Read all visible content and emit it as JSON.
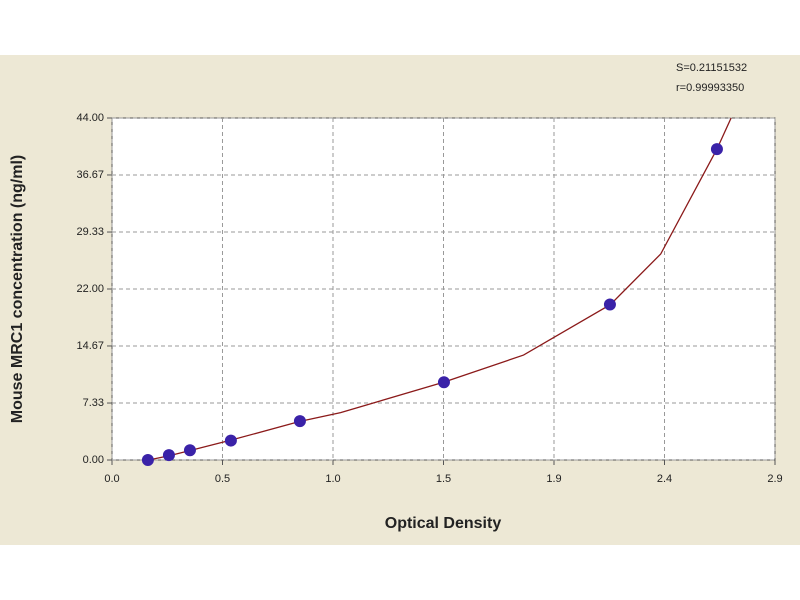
{
  "chart_data": {
    "type": "scatter",
    "x_label": "Optical Density",
    "y_label": "Mouse MRC1 concentration (ng/ml)",
    "annotations": [
      "S=0.21151532",
      "r=0.99993350"
    ],
    "xlim": [
      0,
      2.9
    ],
    "xticks": [
      {
        "value": 0,
        "label": "0.0"
      },
      {
        "value": 0.4833,
        "label": "0.5"
      },
      {
        "value": 0.9667,
        "label": "1.0"
      },
      {
        "value": 1.45,
        "label": "1.5"
      },
      {
        "value": 1.9333,
        "label": "1.9"
      },
      {
        "value": 2.4167,
        "label": "2.4"
      },
      {
        "value": 2.9,
        "label": "2.9"
      }
    ],
    "ylim": [
      0,
      44
    ],
    "yticks": [
      {
        "value": 0,
        "label": "0.00"
      },
      {
        "value": 7.33,
        "label": "7.33"
      },
      {
        "value": 14.67,
        "label": "14.67"
      },
      {
        "value": 22,
        "label": "22.00"
      },
      {
        "value": 29.33,
        "label": "29.33"
      },
      {
        "value": 36.67,
        "label": "36.67"
      },
      {
        "value": 44,
        "label": "44.00"
      }
    ],
    "grid": true,
    "series": [
      {
        "type": "scatter",
        "color": "#3a22a8",
        "x": [
          0.157,
          0.249,
          0.341,
          0.52,
          0.822,
          1.452,
          2.178,
          2.646
        ],
        "values": [
          0,
          0.625,
          1.25,
          2.5,
          5,
          10,
          20,
          40
        ]
      },
      {
        "type": "line",
        "color": "#8b1a1a",
        "x": [
          0.16,
          0.25,
          0.34,
          0.52,
          0.82,
          1.0,
          1.45,
          1.8,
          2.18,
          2.4,
          2.646,
          2.708
        ],
        "values": [
          0,
          0.55,
          1.2,
          2.55,
          4.95,
          6.1,
          10,
          13.5,
          20,
          26.5,
          40,
          44
        ]
      }
    ]
  }
}
